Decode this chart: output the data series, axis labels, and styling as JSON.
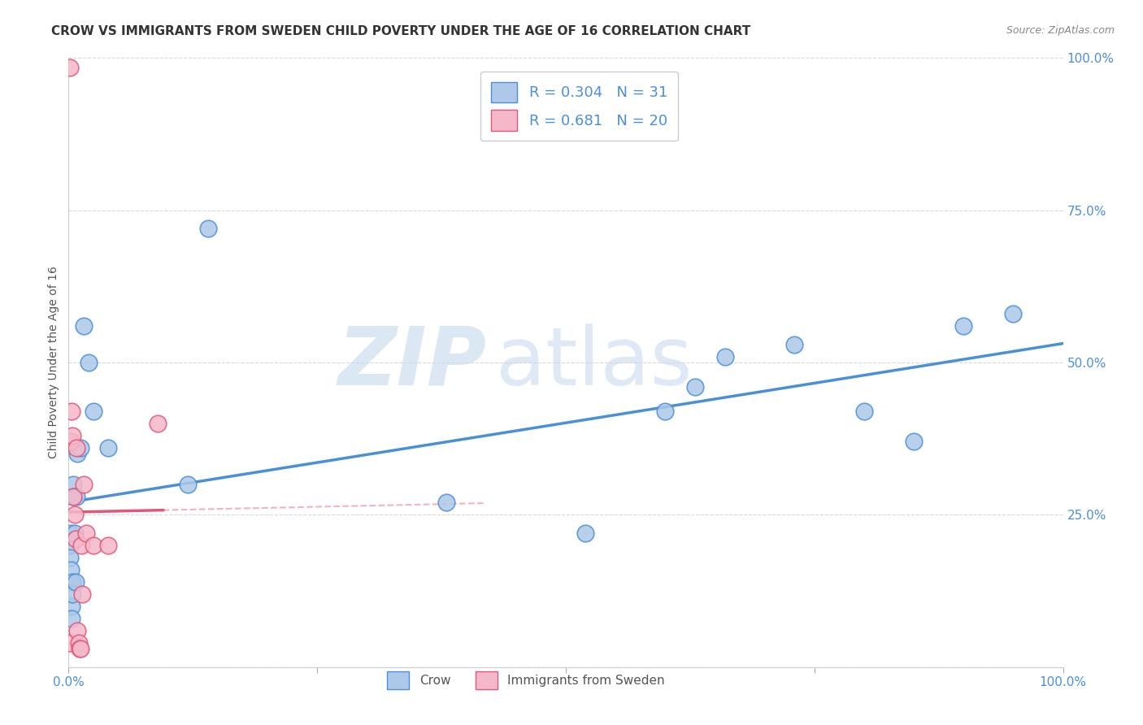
{
  "title": "CROW VS IMMIGRANTS FROM SWEDEN CHILD POVERTY UNDER THE AGE OF 16 CORRELATION CHART",
  "source": "Source: ZipAtlas.com",
  "ylabel": "Child Poverty Under the Age of 16",
  "crow_R": 0.304,
  "crow_N": 31,
  "sweden_R": 0.681,
  "sweden_N": 20,
  "crow_color": "#adc8e8",
  "sweden_color": "#f5b8cb",
  "crow_line_color": "#4a90d9",
  "sweden_line_color": "#e05878",
  "crow_points_x": [
    0.001,
    0.001,
    0.002,
    0.002,
    0.003,
    0.003,
    0.004,
    0.004,
    0.005,
    0.005,
    0.006,
    0.007,
    0.008,
    0.009,
    0.012,
    0.015,
    0.02,
    0.025,
    0.04,
    0.12,
    0.14,
    0.38,
    0.52,
    0.6,
    0.63,
    0.66,
    0.73,
    0.8,
    0.85,
    0.9,
    0.95
  ],
  "crow_points_y": [
    0.2,
    0.18,
    0.22,
    0.16,
    0.1,
    0.08,
    0.14,
    0.12,
    0.3,
    0.28,
    0.22,
    0.14,
    0.28,
    0.35,
    0.36,
    0.56,
    0.5,
    0.42,
    0.36,
    0.3,
    0.72,
    0.27,
    0.22,
    0.42,
    0.46,
    0.51,
    0.53,
    0.42,
    0.37,
    0.56,
    0.58
  ],
  "sweden_points_x": [
    0.001,
    0.001,
    0.002,
    0.003,
    0.004,
    0.005,
    0.006,
    0.007,
    0.008,
    0.009,
    0.01,
    0.011,
    0.012,
    0.013,
    0.014,
    0.015,
    0.018,
    0.025,
    0.04,
    0.09
  ],
  "sweden_points_y": [
    0.985,
    0.04,
    0.37,
    0.42,
    0.38,
    0.28,
    0.25,
    0.21,
    0.36,
    0.06,
    0.04,
    0.03,
    0.03,
    0.2,
    0.12,
    0.3,
    0.22,
    0.2,
    0.2,
    0.4
  ],
  "xlim": [
    0.0,
    1.0
  ],
  "ylim": [
    0.0,
    1.0
  ],
  "xticks": [
    0.0,
    0.25,
    0.5,
    0.75,
    1.0
  ],
  "yticks": [
    0.0,
    0.25,
    0.5,
    0.75,
    1.0
  ],
  "background_color": "#ffffff",
  "grid_color": "#d8d8d8",
  "watermark_zip": "ZIP",
  "watermark_atlas": "atlas",
  "watermark_color_zip": "#c5d8ed",
  "watermark_color_atlas": "#c5d8ed",
  "tick_label_color": "#4a90d9",
  "title_color": "#333333",
  "source_color": "#888888"
}
